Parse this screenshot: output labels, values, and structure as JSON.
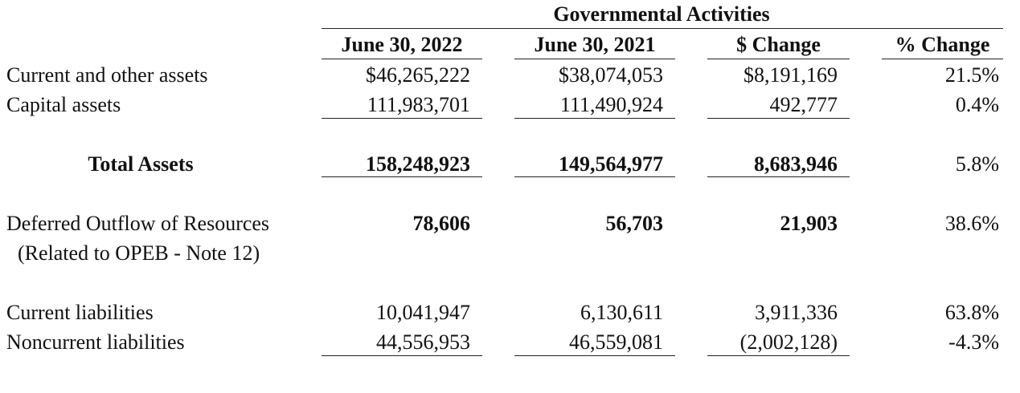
{
  "header": {
    "group_title": "Governmental Activities",
    "columns": [
      "June 30, 2022",
      "June 30, 2021",
      "$ Change",
      "% Change"
    ]
  },
  "rows": [
    {
      "label": "Current and other assets",
      "values": [
        "$46,265,222",
        "$38,074,053",
        "$8,191,169",
        "21.5%"
      ]
    },
    {
      "label": "Capital assets",
      "values": [
        "111,983,701",
        "111,490,924",
        "492,777",
        "0.4%"
      ]
    },
    {
      "label": "Total Assets",
      "values": [
        "158,248,923",
        "149,564,977",
        "8,683,946",
        "5.8%"
      ]
    },
    {
      "label": "Deferred Outflow of Resources",
      "note": "(Related to OPEB - Note 12)",
      "values": [
        "78,606",
        "56,703",
        "21,903",
        "38.6%"
      ]
    },
    {
      "label": "Current liabilities",
      "values": [
        "10,041,947",
        "6,130,611",
        "3,911,336",
        "63.8%"
      ]
    },
    {
      "label": "Noncurrent liabilities",
      "values": [
        "44,556,953",
        "46,559,081",
        "(2,002,128)",
        "-4.3%"
      ]
    }
  ]
}
